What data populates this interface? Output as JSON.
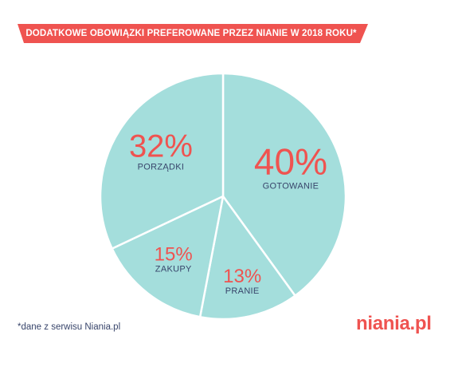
{
  "title": "DODATKOWE OBOWIĄZKI PREFEROWANE PRZEZ NIANIE W 2018 ROKU*",
  "footnote": "*dane z serwisu Niania.pl",
  "logo_text": "niania.pl",
  "colors": {
    "banner": "#ef5350",
    "slice": "#a4dedc",
    "percent": "#ef5350",
    "label": "#38456b",
    "separator": "#ffffff"
  },
  "chart_data": {
    "type": "pie",
    "title": "DODATKOWE OBOWIĄZKI PREFEROWANE PRZEZ NIANIE W 2018 ROKU*",
    "slices": [
      {
        "label": "GOTOWANIE",
        "value": 40,
        "display": "40%"
      },
      {
        "label": "PRANIE",
        "value": 13,
        "display": "13%"
      },
      {
        "label": "ZAKUPY",
        "value": 15,
        "display": "15%"
      },
      {
        "label": "PORZĄDKI",
        "value": 32,
        "display": "32%"
      }
    ],
    "start_angle_deg": 0,
    "direction": "clockwise",
    "legend": "none"
  }
}
